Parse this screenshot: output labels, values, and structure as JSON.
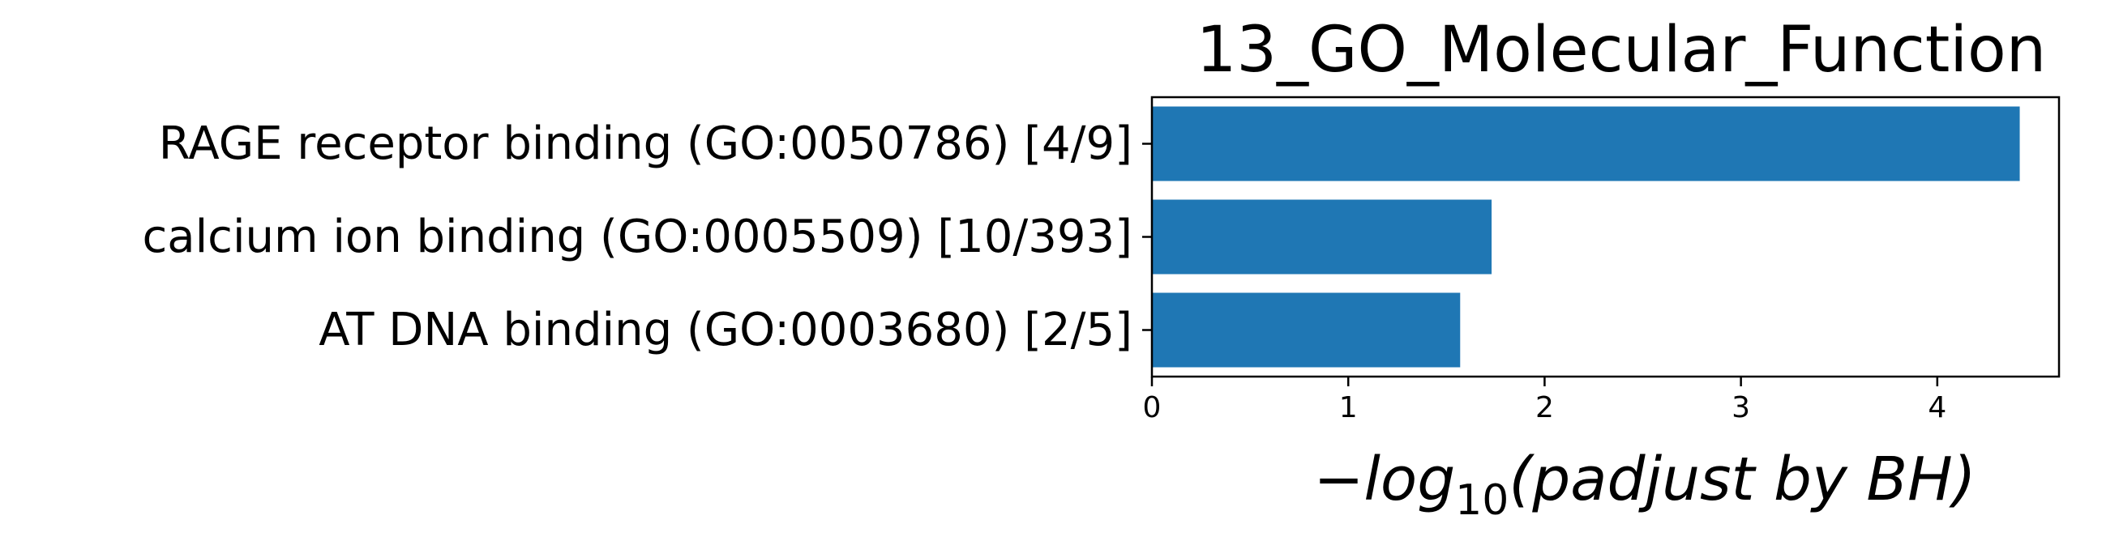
{
  "chart_data": {
    "type": "bar",
    "orientation": "horizontal",
    "title": "13_GO_Molecular_Function",
    "categories": [
      "RAGE receptor binding (GO:0050786) [4/9]",
      "calcium ion binding (GO:0005509) [10/393]",
      "AT DNA binding (GO:0003680) [2/5]"
    ],
    "values": [
      4.42,
      1.73,
      1.57
    ],
    "xlabel": {
      "prefix": "−",
      "log": "log",
      "base": "10",
      "rest": "(padjust by BH)"
    },
    "xlim": [
      0,
      4.62
    ],
    "xticks": [
      0,
      1,
      2,
      3,
      4
    ],
    "grid": false,
    "bar_color": "#1f77b4"
  }
}
